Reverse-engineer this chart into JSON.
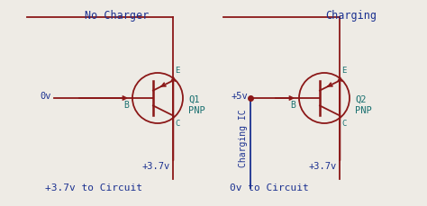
{
  "bg_color": "#eeebe5",
  "dark_red": "#8b1818",
  "teal": "#1a7070",
  "blue": "#1a3090",
  "title1": "No Charger",
  "title2": "Charging",
  "label_0v_1": "0v",
  "label_37v_1": "+3.7v",
  "label_37v_circuit": "+3.7v to Circuit",
  "label_37v_2": "+3.7v",
  "label_5v": "+5v",
  "label_0v_circuit": "0v to Circuit",
  "label_charging_ic": "Charging IC",
  "label_B1": "B",
  "label_B2": "B",
  "label_E1": "E",
  "label_C1": "C",
  "label_E2": "E",
  "label_C2": "C",
  "label_Q1": "Q1",
  "label_PNP1": "PNP",
  "label_Q2": "Q2",
  "label_PNP2": "PNP"
}
